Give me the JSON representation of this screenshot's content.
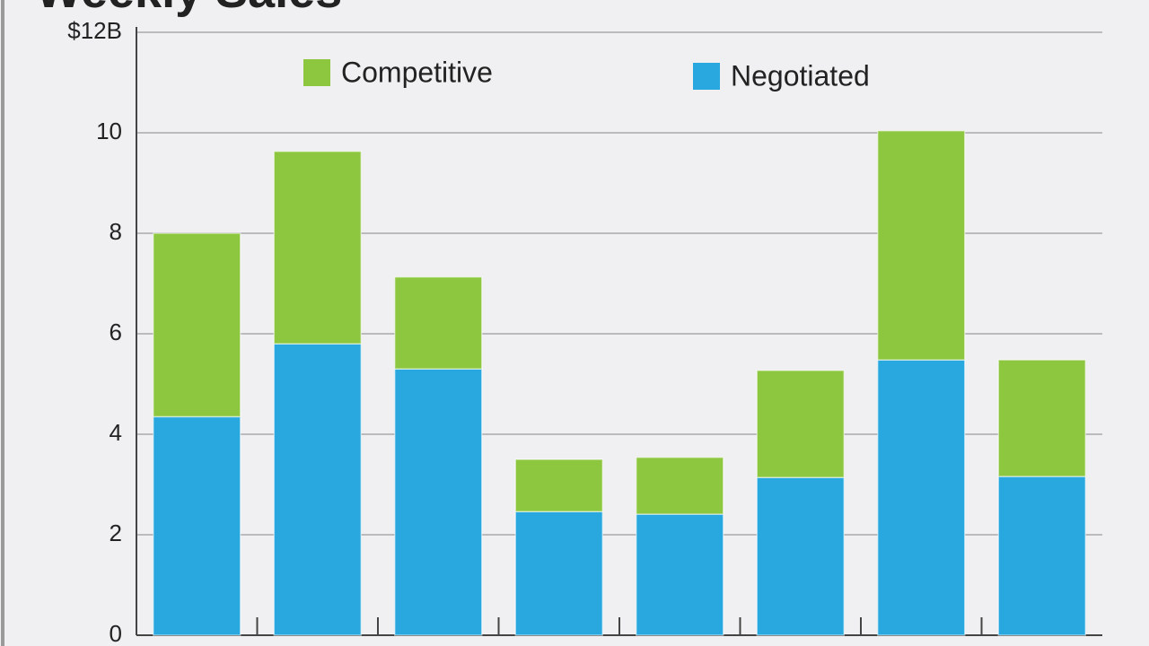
{
  "chart_data": {
    "type": "stacked-bar",
    "title": "Weekly Sales",
    "categories": [
      null,
      null,
      null,
      null,
      null,
      null,
      null,
      null
    ],
    "series": [
      {
        "name": "Negotiated",
        "color": "#29a8e0",
        "values": [
          4.35,
          5.8,
          5.3,
          2.46,
          2.41,
          3.14,
          5.48,
          3.16
        ]
      },
      {
        "name": "Competitive",
        "color": "#8dc63f",
        "values": [
          3.65,
          3.83,
          1.83,
          1.04,
          1.13,
          2.13,
          4.56,
          2.32
        ]
      }
    ],
    "ylim": [
      0,
      12
    ],
    "yticks": [
      0,
      2,
      4,
      6,
      8,
      10,
      {
        "value": 12,
        "label": "$12B"
      }
    ],
    "grid": true
  }
}
